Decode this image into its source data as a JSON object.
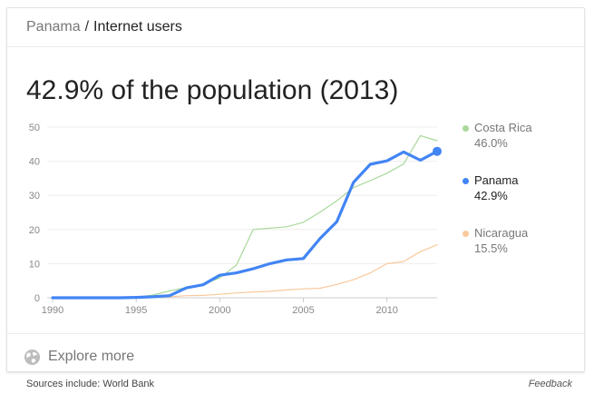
{
  "breadcrumb": {
    "parent": "Panama",
    "separator": "/",
    "current": "Internet users"
  },
  "headline": "42.9% of the population (2013)",
  "explore": {
    "label": "Explore more",
    "icon": "globe-icon"
  },
  "footer": {
    "sources": "Sources include: World Bank",
    "feedback": "Feedback"
  },
  "legend": [
    {
      "name": "Costa Rica",
      "value": "46.0%",
      "color": "#a8d89a",
      "active": false
    },
    {
      "name": "Panama",
      "value": "42.9%",
      "color": "#4285f4",
      "active": true
    },
    {
      "name": "Nicaragua",
      "value": "15.5%",
      "color": "#f9c99c",
      "active": false
    }
  ],
  "chart_data": {
    "type": "line",
    "title": "",
    "xlabel": "",
    "ylabel": "",
    "xlim": [
      1990,
      2013
    ],
    "ylim": [
      0,
      50
    ],
    "x_ticks": [
      1990,
      1995,
      2000,
      2005,
      2010
    ],
    "y_ticks": [
      0,
      10,
      20,
      30,
      40,
      50
    ],
    "grid": true,
    "legend_position": "right",
    "x": [
      1990,
      1991,
      1992,
      1993,
      1994,
      1995,
      1996,
      1997,
      1998,
      1999,
      2000,
      2001,
      2002,
      2003,
      2004,
      2005,
      2006,
      2007,
      2008,
      2009,
      2010,
      2011,
      2012,
      2013
    ],
    "series": [
      {
        "name": "Costa Rica",
        "color": "#a8d89a",
        "width": 1.2,
        "values": [
          0,
          0,
          0,
          0,
          0,
          0.1,
          0.8,
          2.0,
          3.0,
          4.0,
          5.8,
          9.6,
          20.0,
          20.4,
          20.8,
          22.1,
          25.1,
          28.4,
          32.3,
          34.3,
          36.5,
          39.2,
          47.5,
          46.0
        ]
      },
      {
        "name": "Nicaragua",
        "color": "#f9c99c",
        "width": 1.2,
        "values": [
          0,
          0,
          0,
          0,
          0,
          0,
          0.1,
          0.3,
          0.6,
          0.7,
          1.0,
          1.4,
          1.7,
          1.9,
          2.3,
          2.6,
          2.8,
          3.9,
          5.3,
          7.3,
          10.0,
          10.6,
          13.5,
          15.5
        ]
      },
      {
        "name": "Panama",
        "color": "#4285f4",
        "width": 3.2,
        "values": [
          0,
          0,
          0,
          0,
          0,
          0.1,
          0.3,
          0.6,
          2.9,
          3.8,
          6.6,
          7.3,
          8.5,
          10.0,
          11.1,
          11.5,
          17.4,
          22.3,
          33.8,
          39.1,
          40.1,
          42.7,
          40.3,
          42.9
        ],
        "highlight_last": true
      }
    ]
  }
}
